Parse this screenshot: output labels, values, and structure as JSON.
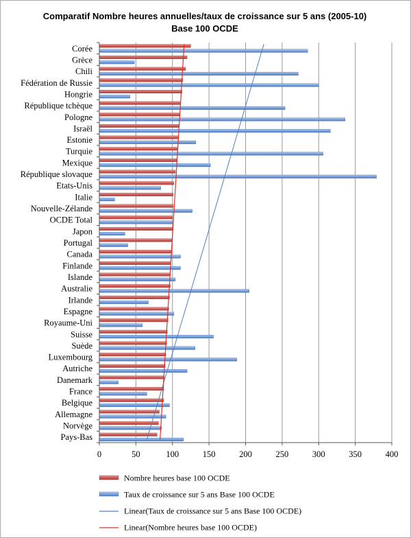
{
  "chart_data": {
    "type": "bar",
    "orientation": "horizontal",
    "title": "Comparatif Nombre heures annuelles/taux de croissance sur 5 ans (2005-10)",
    "subtitle": "Base 100 OCDE",
    "categories": [
      "Corée",
      "Grèce",
      "Chili",
      "Fédération de Russie",
      "Hongrie",
      "République tchèque",
      "Pologne",
      "Israël",
      "Estonie",
      "Turquie",
      "Mexique",
      "République slovaque",
      "Etats-Unis",
      "Italie",
      "Nouvelle-Zélande",
      "OCDE Total",
      "Japon",
      "Portugal",
      "Canada",
      "Finlande",
      "Islande",
      "Australie",
      "Irlande",
      "Espagne",
      "Royaume-Uni",
      "Suisse",
      "Suède",
      "Luxembourg",
      "Autriche",
      "Danemark",
      "France",
      "Belgique",
      "Allemagne",
      "Norvège",
      "Pays-Bas"
    ],
    "series": [
      {
        "name": "Nombre heures base 100 OCDE",
        "color": "#c0504d",
        "values": [
          125,
          120,
          118,
          114,
          113,
          111,
          110,
          109,
          108,
          107,
          106,
          104,
          102,
          101,
          101,
          100,
          100,
          99,
          98,
          97,
          97,
          97,
          96,
          95,
          94,
          93,
          92,
          91,
          90,
          89,
          88,
          88,
          82,
          81,
          79
        ]
      },
      {
        "name": "Taux de croissance sur 5 ans Base 100 OCDE",
        "color": "#4f81bd",
        "values": [
          285,
          48,
          272,
          300,
          42,
          254,
          336,
          316,
          132,
          306,
          152,
          379,
          84,
          21,
          127,
          100,
          35,
          39,
          111,
          111,
          104,
          205,
          67,
          102,
          59,
          156,
          131,
          188,
          120,
          26,
          65,
          96,
          91,
          85,
          115
        ]
      }
    ],
    "trendlines": [
      {
        "name": "Linear(Taux de croissance sur 5 ans Base 100 OCDE)",
        "color": "#4f81bd",
        "from": 225,
        "to": 65
      },
      {
        "name": "Linear(Nombre heures base 100 OCDE)",
        "color": "#e0302a",
        "from": 116,
        "to": 83
      }
    ],
    "xlim": [
      0,
      400
    ],
    "xticks": [
      0,
      50,
      100,
      150,
      200,
      250,
      300,
      350,
      400
    ],
    "grid": true,
    "legend_position": "bottom"
  }
}
